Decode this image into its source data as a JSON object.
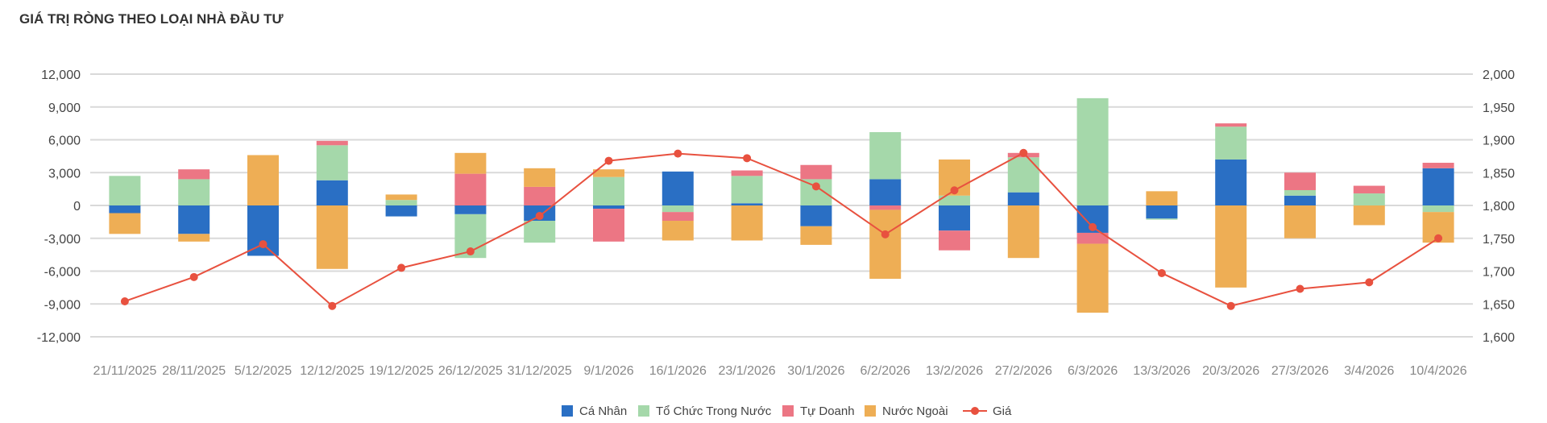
{
  "title": "GIÁ TRỊ RÒNG THEO LOẠI NHÀ ĐẦU TƯ",
  "chart_data": {
    "type": "bar",
    "stacked": true,
    "categories": [
      "21/11/2025",
      "28/11/2025",
      "5/12/2025",
      "12/12/2025",
      "19/12/2025",
      "26/12/2025",
      "31/12/2025",
      "9/1/2026",
      "16/1/2026",
      "23/1/2026",
      "30/1/2026",
      "6/2/2026",
      "13/2/2026",
      "27/2/2026",
      "6/3/2026",
      "13/3/2026",
      "20/3/2026",
      "27/3/2026",
      "3/4/2026",
      "10/4/2026"
    ],
    "series": [
      {
        "name": "Cá Nhân",
        "color": "#2A6FC4",
        "values": [
          -700,
          -2600,
          -4600,
          2300,
          -1000,
          -800,
          -1400,
          -300,
          3100,
          200,
          -1900,
          2400,
          -2300,
          1200,
          -2500,
          -1200,
          4200,
          900,
          0,
          3400
        ]
      },
      {
        "name": "Tổ Chức Trong Nước",
        "color": "#A5D8AA",
        "values": [
          2700,
          2400,
          0,
          3200,
          500,
          -4000,
          -2000,
          2600,
          -600,
          2500,
          2400,
          4300,
          900,
          3200,
          9800,
          -100,
          3000,
          500,
          1100,
          -600
        ]
      },
      {
        "name": "Tự Doanh",
        "color": "#EC7684",
        "values": [
          0,
          900,
          0,
          400,
          0,
          2900,
          1700,
          -3000,
          -800,
          500,
          1300,
          -400,
          -1800,
          400,
          -1000,
          0,
          300,
          1600,
          700,
          500
        ]
      },
      {
        "name": "Nước Ngoài",
        "color": "#EEAE55",
        "values": [
          -1900,
          -700,
          4600,
          -5800,
          500,
          1900,
          1700,
          700,
          -1800,
          -3200,
          -1700,
          -6300,
          3300,
          -4800,
          -6300,
          1300,
          -7500,
          -3000,
          -1800,
          -2800
        ]
      }
    ],
    "line": {
      "name": "Giá",
      "color": "#E8513F",
      "axis": "right",
      "values": [
        1654,
        1691,
        1741,
        1647,
        1705,
        1730,
        1784,
        1868,
        1879,
        1872,
        1829,
        1756,
        1823,
        1880,
        1767,
        1697,
        1647,
        1673,
        1683,
        1750
      ]
    },
    "y_left": {
      "min": -12000,
      "max": 12000,
      "ticks": [
        "12,000",
        "9,000",
        "6,000",
        "3,000",
        "0",
        "-3,000",
        "-6,000",
        "-9,000",
        "-12,000"
      ]
    },
    "y_right": {
      "min": 1600,
      "max": 2000,
      "ticks": [
        "2,000",
        "1,950",
        "1,900",
        "1,850",
        "1,800",
        "1,750",
        "1,700",
        "1,650",
        "1,600"
      ]
    },
    "grid": true,
    "legend_position": "bottom"
  }
}
